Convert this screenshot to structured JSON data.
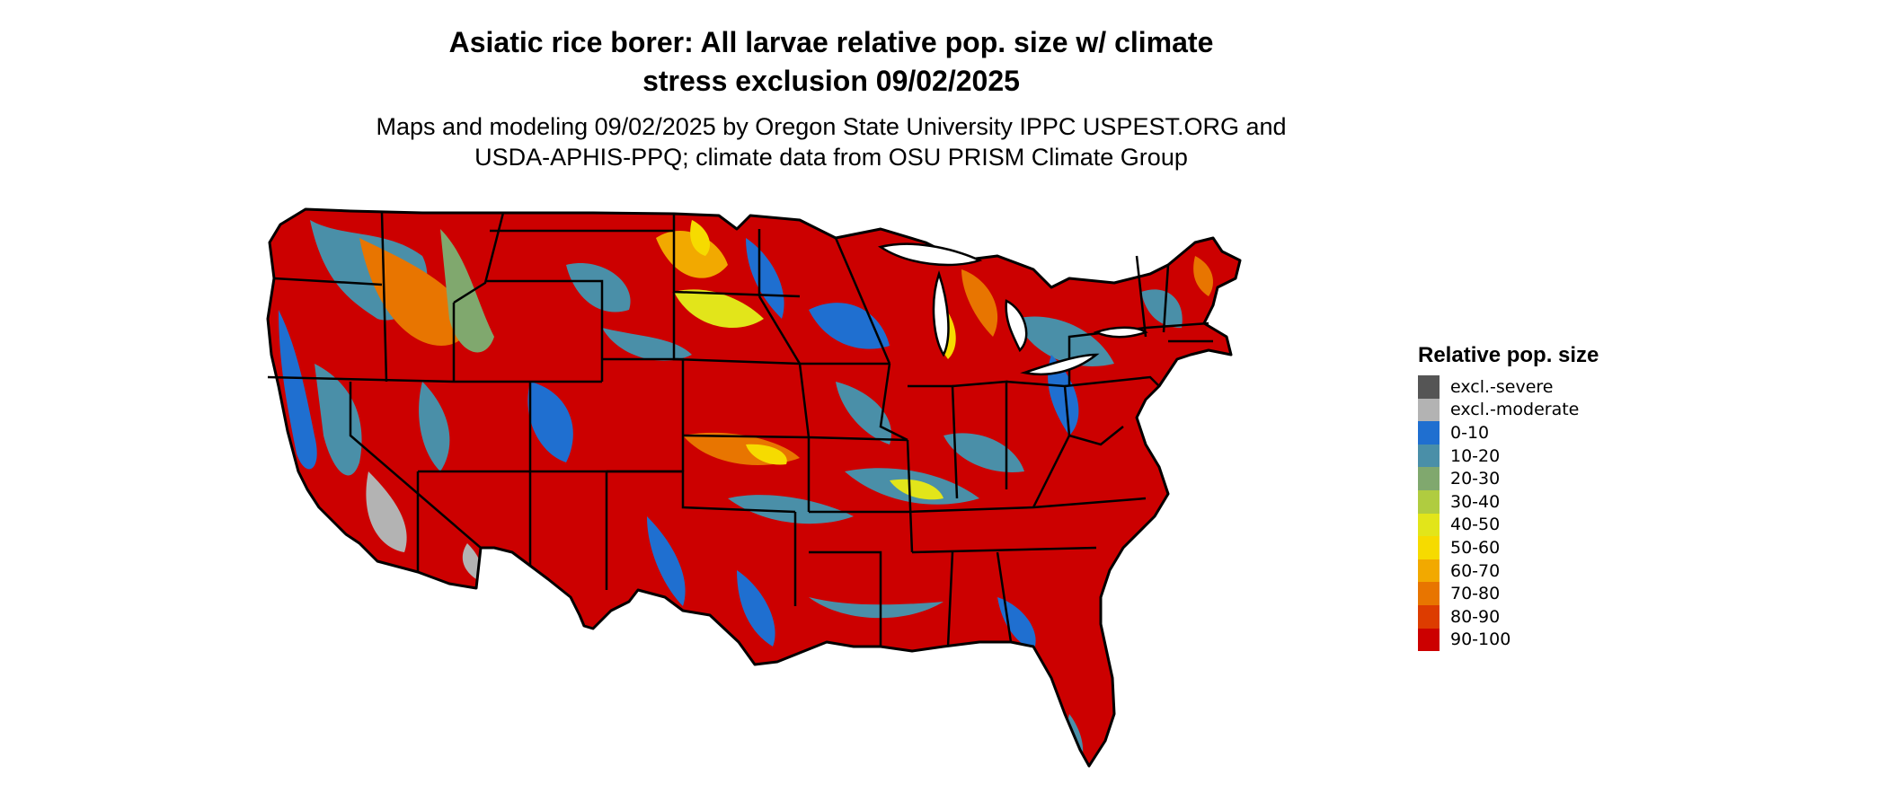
{
  "title": {
    "line1": "Asiatic rice borer: All larvae relative pop. size w/ climate",
    "line2": "stress exclusion 09/02/2025"
  },
  "subtitle": {
    "line1": "Maps and modeling 09/02/2025 by Oregon State University IPPC USPEST.ORG and",
    "line2": "USDA-APHIS-PPQ; climate data from OSU PRISM Climate Group"
  },
  "legend": {
    "title": "Relative pop. size",
    "items": [
      {
        "label": "excl.-severe",
        "color": "#555555"
      },
      {
        "label": "excl.-moderate",
        "color": "#b3b3b3"
      },
      {
        "label": "0-10",
        "color": "#1f6fd0"
      },
      {
        "label": "10-20",
        "color": "#4a8fa8"
      },
      {
        "label": "20-30",
        "color": "#80a86e"
      },
      {
        "label": "30-40",
        "color": "#b0cc40"
      },
      {
        "label": "40-50",
        "color": "#e2e51a"
      },
      {
        "label": "50-60",
        "color": "#f6db00"
      },
      {
        "label": "60-70",
        "color": "#f2a900"
      },
      {
        "label": "70-80",
        "color": "#e87500"
      },
      {
        "label": "80-90",
        "color": "#dd3c00"
      },
      {
        "label": "90-100",
        "color": "#cc0000"
      }
    ]
  },
  "map": {
    "region": "Contiguous United States",
    "dominant_class": "90-100"
  }
}
